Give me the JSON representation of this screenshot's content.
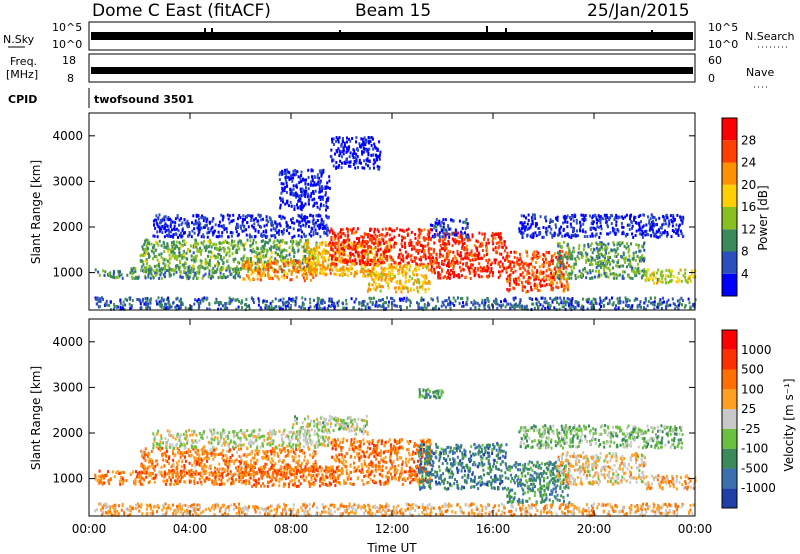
{
  "header": {
    "radar": "Dome C East (fitACF)",
    "beam": "Beam 15",
    "date": "25/Jan/2015"
  },
  "params": {
    "nsky_label": "N.Sky",
    "nsky_ticks": [
      "10^5",
      "10^0"
    ],
    "nsearch_label": "N.Search",
    "freq_label_1": "Freq.",
    "freq_label_2": "[MHz]",
    "freq_ticks": [
      "18",
      "8"
    ],
    "nave_ticks": [
      "60",
      "0"
    ],
    "nave_label": "Nave",
    "cpid_label": "CPID",
    "cpid_value": "twofsound 3501"
  },
  "chart_data": [
    {
      "type": "heatmap",
      "name": "power",
      "ylabel": "Slant Range [km]",
      "xlabel": "",
      "x_ticks": [
        "00:00",
        "04:00",
        "08:00",
        "12:00",
        "16:00",
        "20:00",
        "00:00"
      ],
      "xlim_hours": [
        0,
        24
      ],
      "y_ticks": [
        1000,
        2000,
        3000,
        4000
      ],
      "ylim": [
        180,
        4500
      ],
      "colorbar_label": "Power [dB]",
      "colorbar_ticks": [
        "4",
        "8",
        "12",
        "16",
        "20",
        "24",
        "28"
      ],
      "colorbar_colors": [
        "#0000ff",
        "#2b4fbf",
        "#3a8a5a",
        "#88c020",
        "#ffd000",
        "#ff9000",
        "#ff4000",
        "#ff0000"
      ],
      "regions": [
        {
          "t0": 0.2,
          "t1": 24.0,
          "r0": 220,
          "r1": 480,
          "level": 0.22
        },
        {
          "t0": 0.2,
          "t1": 6.0,
          "r0": 900,
          "r1": 1150,
          "level": 0.3
        },
        {
          "t0": 2.0,
          "t1": 9.0,
          "r0": 1050,
          "r1": 1750,
          "level": 0.38
        },
        {
          "t0": 2.5,
          "t1": 9.5,
          "r0": 1800,
          "r1": 2300,
          "level": 0.1
        },
        {
          "t0": 6.0,
          "t1": 9.0,
          "r0": 850,
          "r1": 1300,
          "level": 0.7
        },
        {
          "t0": 8.5,
          "t1": 12.0,
          "r0": 950,
          "r1": 1700,
          "level": 0.62
        },
        {
          "t0": 9.5,
          "t1": 13.5,
          "r0": 1200,
          "r1": 2000,
          "level": 0.88
        },
        {
          "t0": 11.0,
          "t1": 13.5,
          "r0": 600,
          "r1": 1200,
          "level": 0.6
        },
        {
          "t0": 13.5,
          "t1": 16.5,
          "r0": 900,
          "r1": 1900,
          "level": 0.86
        },
        {
          "t0": 13.5,
          "t1": 15.0,
          "r0": 1800,
          "r1": 2200,
          "level": 0.15
        },
        {
          "t0": 16.5,
          "t1": 19.0,
          "r0": 600,
          "r1": 1500,
          "level": 0.82
        },
        {
          "t0": 18.5,
          "t1": 22.0,
          "r0": 900,
          "r1": 1700,
          "level": 0.35
        },
        {
          "t0": 17.0,
          "t1": 23.5,
          "r0": 1800,
          "r1": 2300,
          "level": 0.1
        },
        {
          "t0": 22.0,
          "t1": 24.0,
          "r0": 800,
          "r1": 1100,
          "level": 0.5
        },
        {
          "t0": 7.5,
          "t1": 9.5,
          "r0": 2400,
          "r1": 3300,
          "level": 0.08
        },
        {
          "t0": 9.5,
          "t1": 11.5,
          "r0": 3300,
          "r1": 4000,
          "level": 0.06
        }
      ]
    },
    {
      "type": "heatmap",
      "name": "velocity",
      "ylabel": "Slant Range [km]",
      "xlabel": "Time UT",
      "x_ticks": [
        "00:00",
        "04:00",
        "08:00",
        "12:00",
        "16:00",
        "20:00",
        "00:00"
      ],
      "xlim_hours": [
        0,
        24
      ],
      "y_ticks": [
        1000,
        2000,
        3000,
        4000
      ],
      "ylim": [
        180,
        4500
      ],
      "colorbar_label": "Velocity [m s⁻¹]",
      "colorbar_ticks": [
        "1000",
        "500",
        "100",
        "25",
        "-25",
        "-100",
        "-500",
        "-1000"
      ],
      "colorbar_colors": [
        "#1f3fa8",
        "#3a70b0",
        "#3a8a5a",
        "#6ac040",
        "#c8c8c8",
        "#ffa020",
        "#ff7000",
        "#ff3000",
        "#ff0000"
      ],
      "regions": [
        {
          "t0": 0.2,
          "t1": 24.0,
          "r0": 220,
          "r1": 480,
          "level": 0.62
        },
        {
          "t0": 0.2,
          "t1": 6.0,
          "r0": 900,
          "r1": 1200,
          "level": 0.7
        },
        {
          "t0": 2.0,
          "t1": 9.0,
          "r0": 1100,
          "r1": 1700,
          "level": 0.68
        },
        {
          "t0": 2.5,
          "t1": 9.5,
          "r0": 1700,
          "r1": 2100,
          "level": 0.48
        },
        {
          "t0": 6.0,
          "t1": 10.0,
          "r0": 850,
          "r1": 1300,
          "level": 0.72
        },
        {
          "t0": 9.5,
          "t1": 13.5,
          "r0": 900,
          "r1": 1900,
          "level": 0.7
        },
        {
          "t0": 13.0,
          "t1": 16.5,
          "r0": 800,
          "r1": 1800,
          "level": 0.22
        },
        {
          "t0": 16.5,
          "t1": 19.0,
          "r0": 500,
          "r1": 1400,
          "level": 0.25
        },
        {
          "t0": 18.5,
          "t1": 22.0,
          "r0": 900,
          "r1": 1600,
          "level": 0.55
        },
        {
          "t0": 17.0,
          "t1": 23.5,
          "r0": 1700,
          "r1": 2200,
          "level": 0.4
        },
        {
          "t0": 22.0,
          "t1": 24.0,
          "r0": 800,
          "r1": 1100,
          "level": 0.6
        },
        {
          "t0": 8.0,
          "t1": 11.0,
          "r0": 2000,
          "r1": 2400,
          "level": 0.45
        },
        {
          "t0": 13.0,
          "t1": 14.0,
          "r0": 2800,
          "r1": 3000,
          "level": 0.3
        }
      ]
    }
  ]
}
